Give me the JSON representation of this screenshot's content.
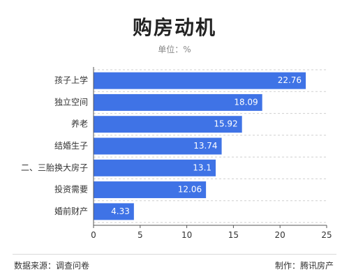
{
  "chart_data": {
    "type": "bar",
    "orientation": "horizontal",
    "title": "购房动机",
    "subtitle": "单位：%",
    "categories": [
      "孩子上学",
      "独立空间",
      "养老",
      "结婚生子",
      "二、三胎换大房子",
      "投资需要",
      "婚前财产"
    ],
    "values": [
      22.76,
      18.09,
      15.92,
      13.74,
      13.1,
      12.06,
      4.33
    ],
    "value_labels": [
      "22.76",
      "18.09",
      "15.92",
      "13.74",
      "13.1",
      "12.06",
      "4.33"
    ],
    "xlim": [
      0,
      25
    ],
    "xticks": [
      0,
      5,
      10,
      15,
      20,
      25
    ],
    "xtick_labels": [
      "0",
      "5",
      "10",
      "15",
      "20",
      "25"
    ],
    "grid": true,
    "bar_color": "#3f73e6"
  },
  "footer": {
    "source": "数据来源：调查问卷",
    "maker": "制作：腾讯房产"
  }
}
